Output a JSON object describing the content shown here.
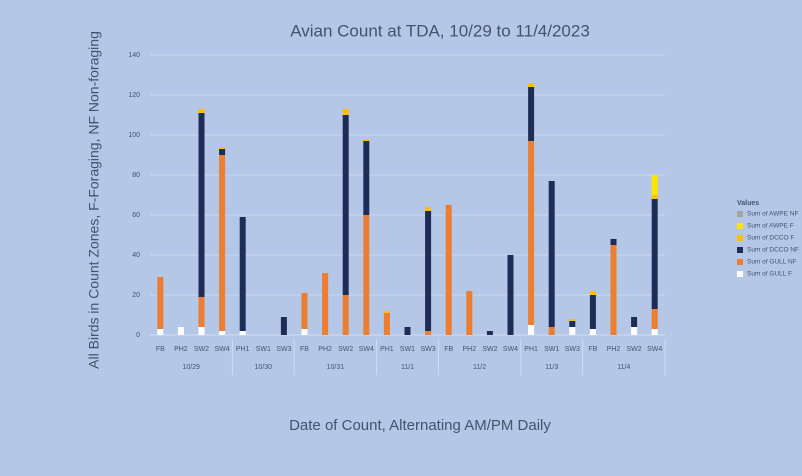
{
  "chart_data": {
    "type": "stacked-bar",
    "title": "Avian Count at TDA, 10/29 to 11/4/2023",
    "y_label": "All Birds in Count Zones, F-Foraging, NF Non-foraging",
    "x_label": "Date of Count, Alternating AM/PM Daily",
    "legend_title": "Values",
    "categories": [
      "FB",
      "PH2",
      "SW2",
      "SW4",
      "PH1",
      "SW1",
      "SW3",
      "FB",
      "PH2",
      "SW2",
      "SW4",
      "PH1",
      "SW1",
      "SW3",
      "FB",
      "PH2",
      "SW2",
      "SW4",
      "PH1",
      "SW1",
      "SW3",
      "FB",
      "PH2",
      "SW2",
      "SW4"
    ],
    "category_groups": [
      "10/29",
      "10/29",
      "10/29",
      "10/29",
      "10/30",
      "10/30",
      "10/30",
      "10/31",
      "10/31",
      "10/31",
      "10/31",
      "11/1",
      "11/1",
      "11/1",
      "11/2",
      "11/2",
      "11/2",
      "11/2",
      "11/3",
      "11/3",
      "11/3",
      "11/4",
      "11/4",
      "11/4",
      "11/4"
    ],
    "series": [
      {
        "name": "Sum of AWPE NF",
        "color": "#a5a5a5",
        "values": [
          0,
          0,
          0,
          0,
          0,
          0,
          0,
          0,
          0,
          0,
          0,
          0,
          0,
          0,
          0,
          0,
          0,
          0,
          0,
          0,
          0,
          0,
          0,
          0,
          0
        ]
      },
      {
        "name": "Sum of AWPE F",
        "color": "#ffe600",
        "values": [
          0,
          0,
          0,
          0,
          0,
          0,
          0,
          0,
          0,
          0,
          0,
          0,
          0,
          0,
          0,
          0,
          0,
          0,
          0,
          0,
          0,
          0,
          0,
          0,
          10
        ]
      },
      {
        "name": "Sum of DCCO F",
        "color": "#ffc000",
        "values": [
          0,
          0,
          2,
          1,
          0,
          0,
          0,
          0,
          0,
          3,
          1,
          1,
          0,
          2,
          0,
          0,
          0,
          0,
          2,
          0,
          1,
          2,
          0,
          0,
          2
        ]
      },
      {
        "name": "Sum of DCCO NF",
        "color": "#1f2d56",
        "values": [
          0,
          0,
          92,
          3,
          57,
          0,
          9,
          0,
          0,
          90,
          37,
          0,
          4,
          60,
          0,
          0,
          2,
          40,
          27,
          73,
          3,
          17,
          3,
          5,
          55
        ]
      },
      {
        "name": "Sum of GULL NF",
        "color": "#ed7d31",
        "values": [
          26,
          0,
          15,
          88,
          0,
          0,
          0,
          18,
          31,
          20,
          60,
          11,
          0,
          2,
          65,
          22,
          0,
          0,
          92,
          4,
          0,
          0,
          45,
          0,
          10
        ]
      },
      {
        "name": "Sum of GULL F",
        "color": "#ffffff",
        "values": [
          3,
          4,
          4,
          2,
          2,
          0,
          0,
          3,
          0,
          0,
          0,
          0,
          0,
          0,
          0,
          0,
          0,
          0,
          5,
          0,
          4,
          3,
          0,
          4,
          3
        ]
      }
    ],
    "ylim": [
      0,
      140
    ],
    "yticks": [
      0,
      20,
      40,
      60,
      80,
      100,
      120,
      140
    ],
    "grid": true
  }
}
